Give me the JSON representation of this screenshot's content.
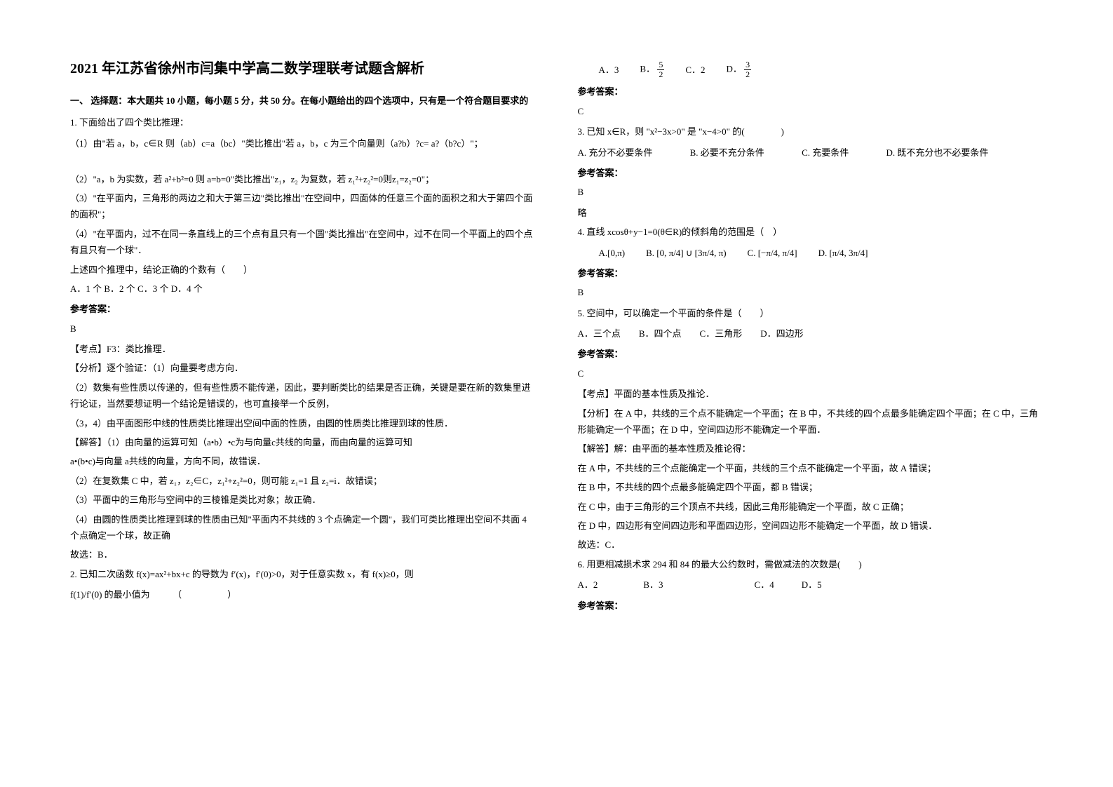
{
  "title": "2021 年江苏省徐州市闫集中学高二数学理联考试题含解析",
  "section1_header": "一、 选择题：本大题共 10 小题，每小题 5 分，共 50 分。在每小题给出的四个选项中，只有是一个符合题目要求的",
  "q1": {
    "intro": "1. 下面给出了四个类比推理：",
    "item1": "（1）由\"若 a，b，c∈R 则（ab）c=a（bc）\"类比推出\"若 a，b，c 为三个向量则（a?b）?c= a?（b?c）\"；",
    "item2": "（2）\"a，b 为实数，若 a²+b²=0 则 a=b=0\"类比推出\"z₁，z₂ 为复数，若 z₁²+z₂²=0则z₁=z₂=0\"；",
    "item3": "（3）\"在平面内，三角形的两边之和大于第三边\"类比推出\"在空间中，四面体的任意三个面的面积之和大于第四个面的面积\"；",
    "item4": "（4）\"在平面内，过不在同一条直线上的三个点有且只有一个圆\"类比推出\"在空间中，过不在同一个平面上的四个点有且只有一个球\"．",
    "prompt": "上述四个推理中，结论正确的个数有（　　）",
    "options": "A．1 个 B．2 个 C．3 个 D．4 个",
    "answer_label": "参考答案：",
    "answer": "B",
    "kp": "【考点】F3：类比推理．",
    "analysis_label": "【分析】逐个验证：（1）向量要考虑方向．",
    "analysis2": "（2）数集有些性质以传递的，但有些性质不能传递，因此，要判断类比的结果是否正确，关键是要在新的数集里进行论证，当然要想证明一个结论是错误的，也可直接举一个反例，",
    "analysis3": "（3，4）由平面图形中线的性质类比推理出空间中面的性质，由圆的性质类比推理到球的性质．",
    "solve_label": "【解答】（1）由向量的运算可知（a•b）•c为与向量c共线的向量，而由向量的运算可知",
    "solve1b": "a•(b•c)与向量 a共线的向量，方向不同，故错误．",
    "solve2": "（2）在复数集 C 中，若 z₁，z₂∈C，z₁²+z₂²=0，则可能 z₁=1 且 z₂=i．故错误；",
    "solve3": "（3）平面中的三角形与空间中的三棱锥是类比对象；故正确．",
    "solve4": "（4）由圆的性质类比推理到球的性质由已知\"平面内不共线的 3 个点确定一个圆\"，我们可类比推理出空间不共面 4 个点确定一个球，故正确",
    "conclusion": "故选：B．"
  },
  "q2": {
    "text": "2. 已知二次函数 f(x)=ax²+bx+c 的导数为 f′(x)，f′(0)>0，对于任意实数 x，有 f(x)≥0，则",
    "text2": "f(1)/f′(0) 的最小值为　　　（　　　　　）",
    "optA": "A．3",
    "optB_label": "B．",
    "optB_num": "5",
    "optB_den": "2",
    "optC": "C．2",
    "optD_label": "D．",
    "optD_num": "3",
    "optD_den": "2",
    "answer_label": "参考答案：",
    "answer": "C"
  },
  "q3": {
    "text": "3. 已知 x∈R，则 \"x²−3x>0\" 是 \"x−4>0\" 的(　　　　)",
    "optA": "A. 充分不必要条件",
    "optB": "B. 必要不充分条件",
    "optC": "C. 充要条件",
    "optD": "D. 既不充分也不必要条件",
    "answer_label": "参考答案：",
    "answer": "B",
    "note": "略"
  },
  "q4": {
    "text": "4. 直线 xcosθ+y−1=0(θ∈R)的倾斜角的范围是（　）",
    "optA": "A.[0,π)",
    "optB": "B. [0, π/4] ∪ [3π/4, π)",
    "optC": "C. [−π/4, π/4]",
    "optD": "D. [π/4, 3π/4]",
    "answer_label": "参考答案：",
    "answer": "B"
  },
  "q5": {
    "text": "5. 空间中，可以确定一个平面的条件是（　　）",
    "options": "A．三个点　　B．四个点　　C．三角形　　D．四边形",
    "answer_label": "参考答案：",
    "answer": "C",
    "kp": "【考点】平面的基本性质及推论．",
    "analysis": "【分析】在 A 中，共线的三个点不能确定一个平面；在 B 中，不共线的四个点最多能确定四个平面；在 C 中，三角形能确定一个平面；在 D 中，空间四边形不能确定一个平面．",
    "solve_label": "【解答】解：由平面的基本性质及推论得：",
    "solveA": "在 A 中，不共线的三个点能确定一个平面，共线的三个点不能确定一个平面，故 A 错误；",
    "solveB": "在 B 中，不共线的四个点最多能确定四个平面，都 B 错误；",
    "solveC": "在 C 中，由于三角形的三个顶点不共线，因此三角形能确定一个平面，故 C 正确；",
    "solveD": "在 D 中，四边形有空间四边形和平面四边形，空间四边形不能确定一个平面，故 D 错误．",
    "conclusion": "故选：C．"
  },
  "q6": {
    "text": "6. 用更相减损术求 294 和 84 的最大公约数时，需做减法的次数是(　　)",
    "options": "A．2　　　　　B．3　　　　　　　　　　C．4　　　D．5",
    "answer_label": "参考答案："
  }
}
